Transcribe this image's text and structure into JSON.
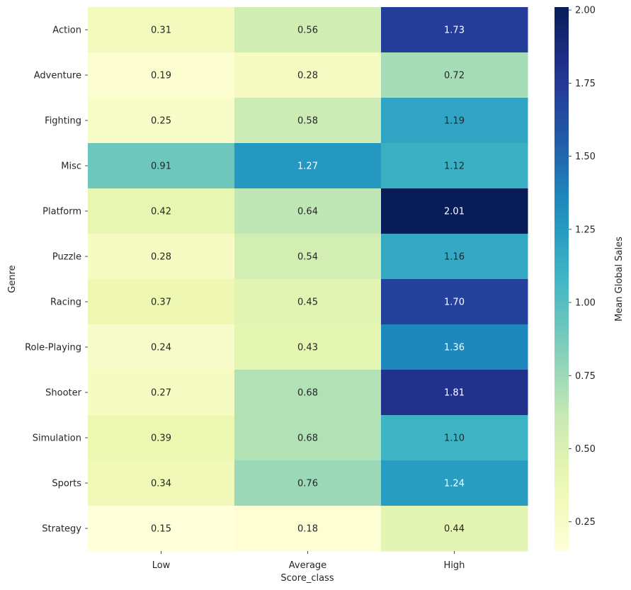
{
  "chart_data": {
    "type": "heatmap",
    "title": "",
    "xlabel": "Score_class",
    "ylabel": "Genre",
    "x_categories": [
      "Low",
      "Average",
      "High"
    ],
    "y_categories": [
      "Action",
      "Adventure",
      "Fighting",
      "Misc",
      "Platform",
      "Puzzle",
      "Racing",
      "Role-Playing",
      "Shooter",
      "Simulation",
      "Sports",
      "Strategy"
    ],
    "values": [
      [
        0.31,
        0.56,
        1.73
      ],
      [
        0.19,
        0.28,
        0.72
      ],
      [
        0.25,
        0.58,
        1.19
      ],
      [
        0.91,
        1.27,
        1.12
      ],
      [
        0.42,
        0.64,
        2.01
      ],
      [
        0.28,
        0.54,
        1.16
      ],
      [
        0.37,
        0.45,
        1.7
      ],
      [
        0.24,
        0.43,
        1.36
      ],
      [
        0.27,
        0.68,
        1.81
      ],
      [
        0.39,
        0.68,
        1.1
      ],
      [
        0.34,
        0.76,
        1.24
      ],
      [
        0.15,
        0.18,
        0.44
      ]
    ],
    "value_format": "0.00",
    "colormap": "YlGnBu",
    "vmin": 0.15,
    "vmax": 2.01,
    "colorbar": {
      "label": "Mean Global Sales",
      "ticks": [
        0.25,
        0.5,
        0.75,
        1.0,
        1.25,
        1.5,
        1.75,
        2.0
      ],
      "tick_labels": [
        "0.25",
        "0.50",
        "0.75",
        "1.00",
        "1.25",
        "1.50",
        "1.75",
        "2.00"
      ]
    }
  }
}
